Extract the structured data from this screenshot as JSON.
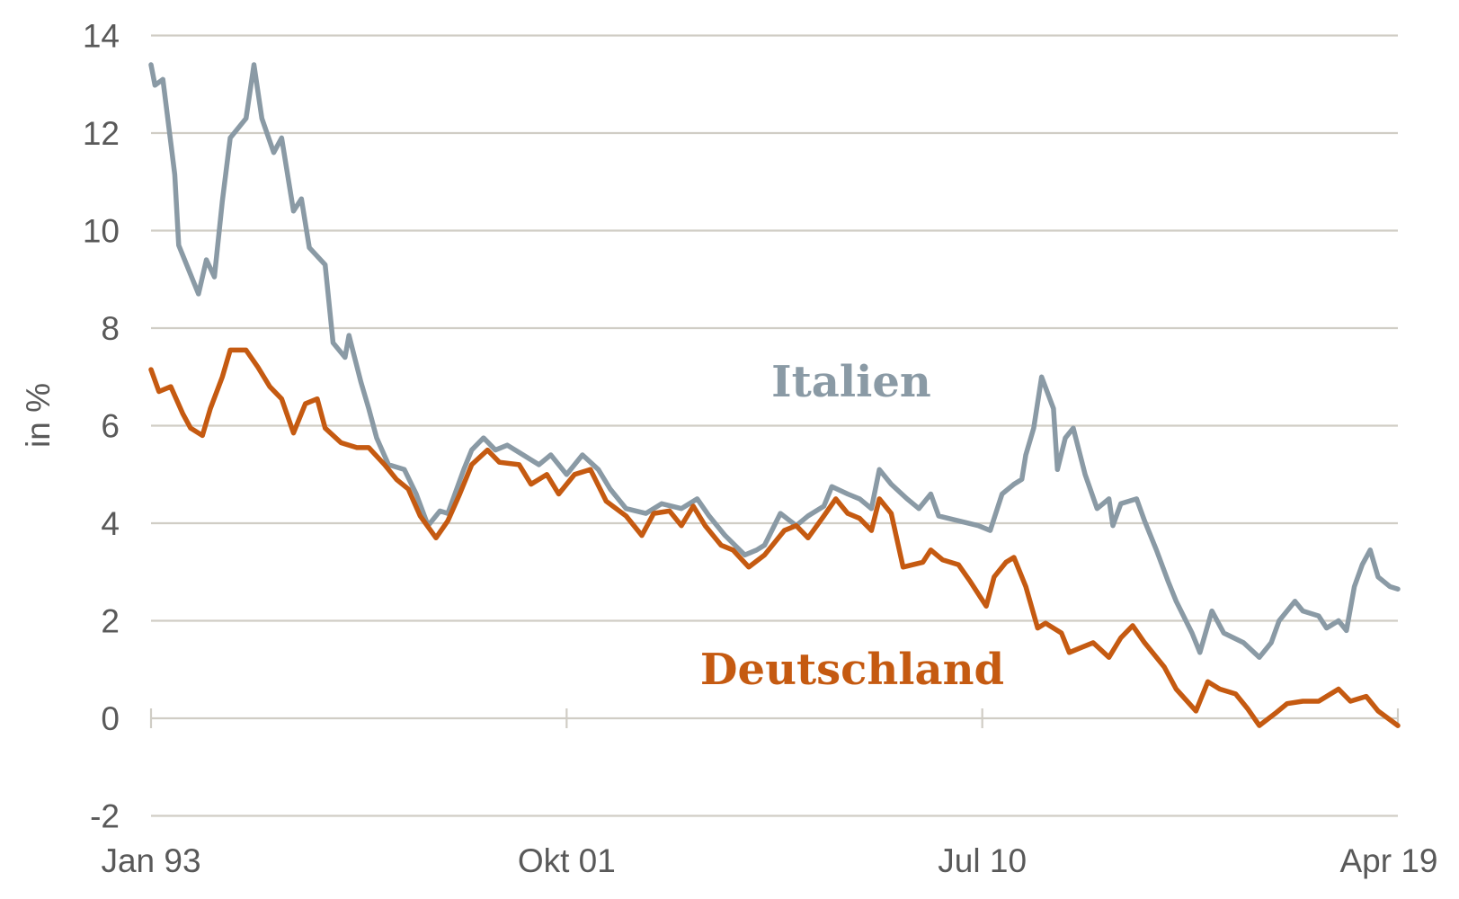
{
  "chart_data": {
    "type": "line",
    "title": "",
    "xlabel": "",
    "ylabel": "in %",
    "ylim": [
      -2,
      14
    ],
    "yticks": [
      "-2",
      "0",
      "2",
      "4",
      "6",
      "8",
      "10",
      "12",
      "14"
    ],
    "xlim": [
      "1993-01",
      "2019-04"
    ],
    "xticks": [
      {
        "label": "Jan 93",
        "date": "1993-01"
      },
      {
        "label": "Okt 01",
        "date": "2001-10"
      },
      {
        "label": "Jul 10",
        "date": "2010-07"
      },
      {
        "label": "Apr 19",
        "date": "2019-04"
      }
    ],
    "grid": "horizontal",
    "series": [
      {
        "name": "Italien",
        "color": "#8a9aa5",
        "points": [
          [
            "1993-01",
            13.4
          ],
          [
            "1993-02",
            12.98
          ],
          [
            "1993-04",
            13.1
          ],
          [
            "1993-07",
            11.15
          ],
          [
            "1993-08",
            9.7
          ],
          [
            "1993-11",
            9.1
          ],
          [
            "1994-01",
            8.7
          ],
          [
            "1994-03",
            9.4
          ],
          [
            "1994-05",
            9.05
          ],
          [
            "1994-07",
            10.6
          ],
          [
            "1994-09",
            11.9
          ],
          [
            "1995-01",
            12.3
          ],
          [
            "1995-03",
            13.4
          ],
          [
            "1995-05",
            12.3
          ],
          [
            "1995-08",
            11.6
          ],
          [
            "1995-10",
            11.9
          ],
          [
            "1996-01",
            10.4
          ],
          [
            "1996-03",
            10.65
          ],
          [
            "1996-05",
            9.65
          ],
          [
            "1996-09",
            9.3
          ],
          [
            "1996-11",
            7.7
          ],
          [
            "1997-02",
            7.4
          ],
          [
            "1997-03",
            7.85
          ],
          [
            "1997-06",
            6.9
          ],
          [
            "1997-08",
            6.35
          ],
          [
            "1997-10",
            5.75
          ],
          [
            "1998-01",
            5.2
          ],
          [
            "1998-05",
            5.1
          ],
          [
            "1998-08",
            4.6
          ],
          [
            "1998-11",
            3.95
          ],
          [
            "1999-02",
            4.25
          ],
          [
            "1999-04",
            4.2
          ],
          [
            "1999-08",
            5.1
          ],
          [
            "1999-10",
            5.5
          ],
          [
            "2000-01",
            5.75
          ],
          [
            "2000-04",
            5.5
          ],
          [
            "2000-07",
            5.6
          ],
          [
            "2000-11",
            5.4
          ],
          [
            "2001-03",
            5.2
          ],
          [
            "2001-06",
            5.4
          ],
          [
            "2001-10",
            5.0
          ],
          [
            "2002-02",
            5.4
          ],
          [
            "2002-06",
            5.1
          ],
          [
            "2002-09",
            4.7
          ],
          [
            "2003-01",
            4.3
          ],
          [
            "2003-06",
            4.2
          ],
          [
            "2003-10",
            4.4
          ],
          [
            "2004-03",
            4.3
          ],
          [
            "2004-07",
            4.5
          ],
          [
            "2004-10",
            4.15
          ],
          [
            "2005-02",
            3.75
          ],
          [
            "2005-07",
            3.35
          ],
          [
            "2005-10",
            3.45
          ],
          [
            "2005-12",
            3.55
          ],
          [
            "2006-04",
            4.2
          ],
          [
            "2006-08",
            3.95
          ],
          [
            "2006-11",
            4.15
          ],
          [
            "2007-03",
            4.35
          ],
          [
            "2007-05",
            4.75
          ],
          [
            "2007-09",
            4.6
          ],
          [
            "2007-12",
            4.5
          ],
          [
            "2008-03",
            4.3
          ],
          [
            "2008-05",
            5.1
          ],
          [
            "2008-08",
            4.8
          ],
          [
            "2008-12",
            4.5
          ],
          [
            "2009-03",
            4.3
          ],
          [
            "2009-06",
            4.6
          ],
          [
            "2009-08",
            4.15
          ],
          [
            "2010-01",
            4.05
          ],
          [
            "2010-06",
            3.95
          ],
          [
            "2010-09",
            3.85
          ],
          [
            "2010-12",
            4.6
          ],
          [
            "2011-03",
            4.8
          ],
          [
            "2011-05",
            4.9
          ],
          [
            "2011-06",
            5.4
          ],
          [
            "2011-08",
            5.95
          ],
          [
            "2011-10",
            7.0
          ],
          [
            "2012-01",
            6.35
          ],
          [
            "2012-02",
            5.1
          ],
          [
            "2012-04",
            5.75
          ],
          [
            "2012-06",
            5.95
          ],
          [
            "2012-09",
            5.0
          ],
          [
            "2012-12",
            4.3
          ],
          [
            "2013-03",
            4.5
          ],
          [
            "2013-04",
            3.95
          ],
          [
            "2013-06",
            4.4
          ],
          [
            "2013-10",
            4.5
          ],
          [
            "2013-12",
            4.05
          ],
          [
            "2014-03",
            3.45
          ],
          [
            "2014-06",
            2.8
          ],
          [
            "2014-08",
            2.4
          ],
          [
            "2014-12",
            1.75
          ],
          [
            "2015-02",
            1.35
          ],
          [
            "2015-05",
            2.2
          ],
          [
            "2015-08",
            1.75
          ],
          [
            "2016-01",
            1.55
          ],
          [
            "2016-05",
            1.25
          ],
          [
            "2016-08",
            1.55
          ],
          [
            "2016-10",
            2.0
          ],
          [
            "2017-02",
            2.4
          ],
          [
            "2017-04",
            2.2
          ],
          [
            "2017-08",
            2.1
          ],
          [
            "2017-10",
            1.85
          ],
          [
            "2018-01",
            2.0
          ],
          [
            "2018-03",
            1.8
          ],
          [
            "2018-05",
            2.7
          ],
          [
            "2018-07",
            3.15
          ],
          [
            "2018-09",
            3.45
          ],
          [
            "2018-11",
            2.9
          ],
          [
            "2019-02",
            2.7
          ],
          [
            "2019-04",
            2.65
          ]
        ]
      },
      {
        "name": "Deutschland",
        "color": "#c55a11",
        "points": [
          [
            "1993-01",
            7.15
          ],
          [
            "1993-03",
            6.7
          ],
          [
            "1993-06",
            6.8
          ],
          [
            "1993-09",
            6.25
          ],
          [
            "1993-11",
            5.95
          ],
          [
            "1994-02",
            5.8
          ],
          [
            "1994-04",
            6.35
          ],
          [
            "1994-07",
            7.0
          ],
          [
            "1994-09",
            7.55
          ],
          [
            "1995-01",
            7.55
          ],
          [
            "1995-04",
            7.2
          ],
          [
            "1995-07",
            6.8
          ],
          [
            "1995-10",
            6.55
          ],
          [
            "1996-01",
            5.85
          ],
          [
            "1996-04",
            6.45
          ],
          [
            "1996-07",
            6.55
          ],
          [
            "1996-09",
            5.95
          ],
          [
            "1997-01",
            5.65
          ],
          [
            "1997-05",
            5.55
          ],
          [
            "1997-08",
            5.55
          ],
          [
            "1997-12",
            5.2
          ],
          [
            "1998-03",
            4.9
          ],
          [
            "1998-06",
            4.7
          ],
          [
            "1998-09",
            4.15
          ],
          [
            "1999-01",
            3.7
          ],
          [
            "1999-04",
            4.05
          ],
          [
            "1999-07",
            4.6
          ],
          [
            "1999-10",
            5.2
          ],
          [
            "2000-02",
            5.5
          ],
          [
            "2000-05",
            5.25
          ],
          [
            "2000-10",
            5.2
          ],
          [
            "2001-01",
            4.8
          ],
          [
            "2001-05",
            5.0
          ],
          [
            "2001-08",
            4.6
          ],
          [
            "2001-12",
            5.0
          ],
          [
            "2002-04",
            5.1
          ],
          [
            "2002-08",
            4.45
          ],
          [
            "2003-01",
            4.15
          ],
          [
            "2003-05",
            3.75
          ],
          [
            "2003-08",
            4.2
          ],
          [
            "2003-12",
            4.25
          ],
          [
            "2004-03",
            3.95
          ],
          [
            "2004-06",
            4.35
          ],
          [
            "2004-09",
            3.95
          ],
          [
            "2005-01",
            3.55
          ],
          [
            "2005-04",
            3.45
          ],
          [
            "2005-08",
            3.1
          ],
          [
            "2005-12",
            3.35
          ],
          [
            "2006-05",
            3.85
          ],
          [
            "2006-08",
            3.95
          ],
          [
            "2006-11",
            3.7
          ],
          [
            "2007-03",
            4.15
          ],
          [
            "2007-06",
            4.5
          ],
          [
            "2007-09",
            4.2
          ],
          [
            "2007-12",
            4.1
          ],
          [
            "2008-03",
            3.85
          ],
          [
            "2008-05",
            4.5
          ],
          [
            "2008-08",
            4.2
          ],
          [
            "2008-11",
            3.1
          ],
          [
            "2009-04",
            3.2
          ],
          [
            "2009-06",
            3.45
          ],
          [
            "2009-09",
            3.25
          ],
          [
            "2010-01",
            3.15
          ],
          [
            "2010-04",
            2.8
          ],
          [
            "2010-08",
            2.3
          ],
          [
            "2010-10",
            2.9
          ],
          [
            "2011-01",
            3.2
          ],
          [
            "2011-03",
            3.3
          ],
          [
            "2011-06",
            2.7
          ],
          [
            "2011-09",
            1.85
          ],
          [
            "2011-11",
            1.95
          ],
          [
            "2012-03",
            1.75
          ],
          [
            "2012-05",
            1.35
          ],
          [
            "2012-08",
            1.45
          ],
          [
            "2012-11",
            1.55
          ],
          [
            "2013-03",
            1.25
          ],
          [
            "2013-06",
            1.65
          ],
          [
            "2013-09",
            1.9
          ],
          [
            "2013-12",
            1.55
          ],
          [
            "2014-05",
            1.05
          ],
          [
            "2014-08",
            0.6
          ],
          [
            "2015-01",
            0.15
          ],
          [
            "2015-04",
            0.75
          ],
          [
            "2015-07",
            0.6
          ],
          [
            "2015-11",
            0.5
          ],
          [
            "2016-02",
            0.2
          ],
          [
            "2016-05",
            -0.15
          ],
          [
            "2016-09",
            0.1
          ],
          [
            "2016-12",
            0.3
          ],
          [
            "2017-04",
            0.35
          ],
          [
            "2017-08",
            0.35
          ],
          [
            "2018-01",
            0.6
          ],
          [
            "2018-04",
            0.35
          ],
          [
            "2018-08",
            0.45
          ],
          [
            "2018-11",
            0.15
          ],
          [
            "2019-04",
            -0.15
          ]
        ]
      }
    ]
  }
}
